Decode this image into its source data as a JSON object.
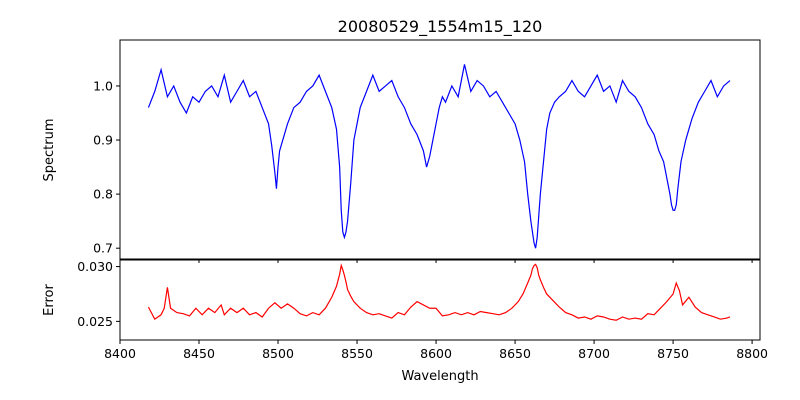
{
  "chart_data": [
    {
      "type": "line",
      "title": "20080529_1554m15_120",
      "xlabel": "",
      "ylabel": "Spectrum",
      "xlim": [
        8400,
        8805
      ],
      "ylim": [
        0.68,
        1.085
      ],
      "xticks": [
        8400,
        8450,
        8500,
        8550,
        8600,
        8650,
        8700,
        8750,
        8800
      ],
      "yticks": [
        0.7,
        0.8,
        0.9,
        1.0
      ],
      "ytick_labels": [
        "0.7",
        "0.8",
        "0.9",
        "1.0"
      ],
      "grid": false,
      "color": "#0000ff",
      "x": [
        8418,
        8422,
        8426,
        8430,
        8434,
        8438,
        8442,
        8446,
        8450,
        8454,
        8458,
        8462,
        8466,
        8470,
        8474,
        8478,
        8482,
        8486,
        8490,
        8494,
        8496,
        8498,
        8499,
        8500,
        8501,
        8503,
        8506,
        8510,
        8514,
        8518,
        8522,
        8526,
        8530,
        8534,
        8537,
        8539,
        8540,
        8541,
        8542,
        8543,
        8544,
        8546,
        8548,
        8552,
        8556,
        8560,
        8564,
        8568,
        8572,
        8576,
        8580,
        8584,
        8588,
        8592,
        8594,
        8596,
        8598,
        8600,
        8602,
        8604,
        8606,
        8610,
        8614,
        8618,
        8622,
        8626,
        8630,
        8634,
        8638,
        8642,
        8646,
        8650,
        8653,
        8656,
        8658,
        8660,
        8661,
        8662,
        8663,
        8664,
        8665,
        8666,
        8668,
        8670,
        8672,
        8675,
        8678,
        8682,
        8686,
        8690,
        8694,
        8698,
        8702,
        8706,
        8710,
        8714,
        8718,
        8722,
        8726,
        8730,
        8734,
        8738,
        8741,
        8744,
        8746,
        8748,
        8749,
        8750,
        8751,
        8752,
        8753,
        8755,
        8758,
        8762,
        8766,
        8770,
        8774,
        8778,
        8782,
        8786
      ],
      "y": [
        0.96,
        0.99,
        1.03,
        0.98,
        1.0,
        0.97,
        0.95,
        0.98,
        0.97,
        0.99,
        1.0,
        0.98,
        1.02,
        0.97,
        0.99,
        1.01,
        0.98,
        0.99,
        0.96,
        0.93,
        0.89,
        0.84,
        0.81,
        0.85,
        0.88,
        0.9,
        0.93,
        0.96,
        0.97,
        0.99,
        1.0,
        1.02,
        0.99,
        0.96,
        0.92,
        0.85,
        0.77,
        0.73,
        0.72,
        0.73,
        0.75,
        0.82,
        0.9,
        0.96,
        0.99,
        1.02,
        0.99,
        1.0,
        1.01,
        0.98,
        0.96,
        0.93,
        0.91,
        0.88,
        0.85,
        0.87,
        0.9,
        0.93,
        0.96,
        0.98,
        0.97,
        1.0,
        0.98,
        1.04,
        0.99,
        1.01,
        1.0,
        0.98,
        0.99,
        0.97,
        0.95,
        0.93,
        0.9,
        0.86,
        0.8,
        0.75,
        0.73,
        0.71,
        0.7,
        0.72,
        0.76,
        0.8,
        0.86,
        0.92,
        0.95,
        0.97,
        0.98,
        0.99,
        1.01,
        0.99,
        0.98,
        1.0,
        1.02,
        0.99,
        1.0,
        0.97,
        1.01,
        0.99,
        0.98,
        0.96,
        0.93,
        0.91,
        0.88,
        0.86,
        0.83,
        0.8,
        0.78,
        0.77,
        0.77,
        0.78,
        0.81,
        0.86,
        0.9,
        0.94,
        0.97,
        0.99,
        1.01,
        0.98,
        1.0,
        1.01
      ]
    },
    {
      "type": "line",
      "title": "",
      "xlabel": "Wavelength",
      "ylabel": "Error",
      "xlim": [
        8400,
        8805
      ],
      "ylim": [
        0.0233,
        0.0306
      ],
      "xticks": [
        8400,
        8450,
        8500,
        8550,
        8600,
        8650,
        8700,
        8750,
        8800
      ],
      "xtick_labels": [
        "8400",
        "8450",
        "8500",
        "8550",
        "8600",
        "8650",
        "8700",
        "8750",
        "8800"
      ],
      "yticks": [
        0.025,
        0.03
      ],
      "ytick_labels": [
        "0.025",
        "0.030"
      ],
      "grid": false,
      "color": "#ff0000",
      "x": [
        8418,
        8422,
        8426,
        8428,
        8430,
        8432,
        8436,
        8440,
        8444,
        8448,
        8452,
        8456,
        8460,
        8464,
        8466,
        8470,
        8474,
        8478,
        8482,
        8486,
        8490,
        8494,
        8498,
        8502,
        8506,
        8510,
        8514,
        8518,
        8522,
        8526,
        8530,
        8534,
        8537,
        8539,
        8540,
        8541,
        8542,
        8543,
        8544,
        8546,
        8548,
        8552,
        8556,
        8560,
        8564,
        8568,
        8572,
        8576,
        8580,
        8584,
        8588,
        8592,
        8596,
        8600,
        8604,
        8608,
        8612,
        8616,
        8620,
        8624,
        8628,
        8632,
        8636,
        8640,
        8644,
        8648,
        8652,
        8655,
        8658,
        8660,
        8661,
        8662,
        8663,
        8664,
        8665,
        8666,
        8668,
        8670,
        8674,
        8678,
        8682,
        8686,
        8690,
        8694,
        8698,
        8702,
        8706,
        8710,
        8714,
        8718,
        8722,
        8726,
        8730,
        8734,
        8738,
        8742,
        8746,
        8750,
        8752,
        8754,
        8756,
        8760,
        8764,
        8768,
        8772,
        8776,
        8780,
        8784,
        8786
      ],
      "y": [
        0.0263,
        0.0252,
        0.0256,
        0.0262,
        0.0281,
        0.0262,
        0.0258,
        0.0257,
        0.0255,
        0.0262,
        0.0256,
        0.0262,
        0.0258,
        0.0265,
        0.0256,
        0.0262,
        0.0258,
        0.0262,
        0.0256,
        0.0258,
        0.0254,
        0.0262,
        0.0267,
        0.0262,
        0.0266,
        0.0262,
        0.0257,
        0.0255,
        0.0258,
        0.0256,
        0.0262,
        0.0272,
        0.0282,
        0.0293,
        0.0301,
        0.0297,
        0.0292,
        0.0286,
        0.0279,
        0.0273,
        0.0268,
        0.0262,
        0.0258,
        0.0256,
        0.0257,
        0.0255,
        0.0253,
        0.0258,
        0.0256,
        0.0263,
        0.0268,
        0.0265,
        0.0262,
        0.0262,
        0.0255,
        0.0256,
        0.0258,
        0.0256,
        0.0258,
        0.0256,
        0.0259,
        0.0258,
        0.0257,
        0.0256,
        0.0258,
        0.0262,
        0.0268,
        0.0275,
        0.0285,
        0.0292,
        0.0298,
        0.0301,
        0.0302,
        0.0299,
        0.0292,
        0.0288,
        0.0281,
        0.0275,
        0.0269,
        0.0263,
        0.0258,
        0.0256,
        0.0253,
        0.0254,
        0.0252,
        0.0255,
        0.0254,
        0.0252,
        0.0251,
        0.0254,
        0.0252,
        0.0253,
        0.0252,
        0.0257,
        0.0256,
        0.0262,
        0.0268,
        0.0275,
        0.0285,
        0.0278,
        0.0265,
        0.0272,
        0.0263,
        0.0258,
        0.0256,
        0.0254,
        0.0252,
        0.0253,
        0.0254
      ]
    }
  ]
}
